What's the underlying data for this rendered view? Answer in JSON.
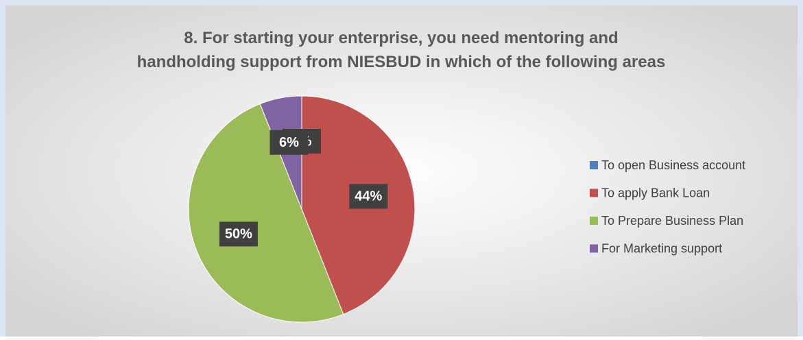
{
  "chart_data": {
    "type": "pie",
    "title": "8. For starting your enterprise, you need mentoring and handholding support from NIESBUD in which of the following areas",
    "categories": [
      "To open Business account",
      "To apply Bank Loan",
      "To Prepare Business Plan",
      "For Marketing support"
    ],
    "values": [
      0,
      44,
      50,
      6
    ],
    "value_labels": [
      "0%",
      "44%",
      "50%",
      "6%"
    ],
    "colors": [
      "#4f81bd",
      "#c0504d",
      "#9bbb59",
      "#8064a2"
    ],
    "legend": "right"
  }
}
